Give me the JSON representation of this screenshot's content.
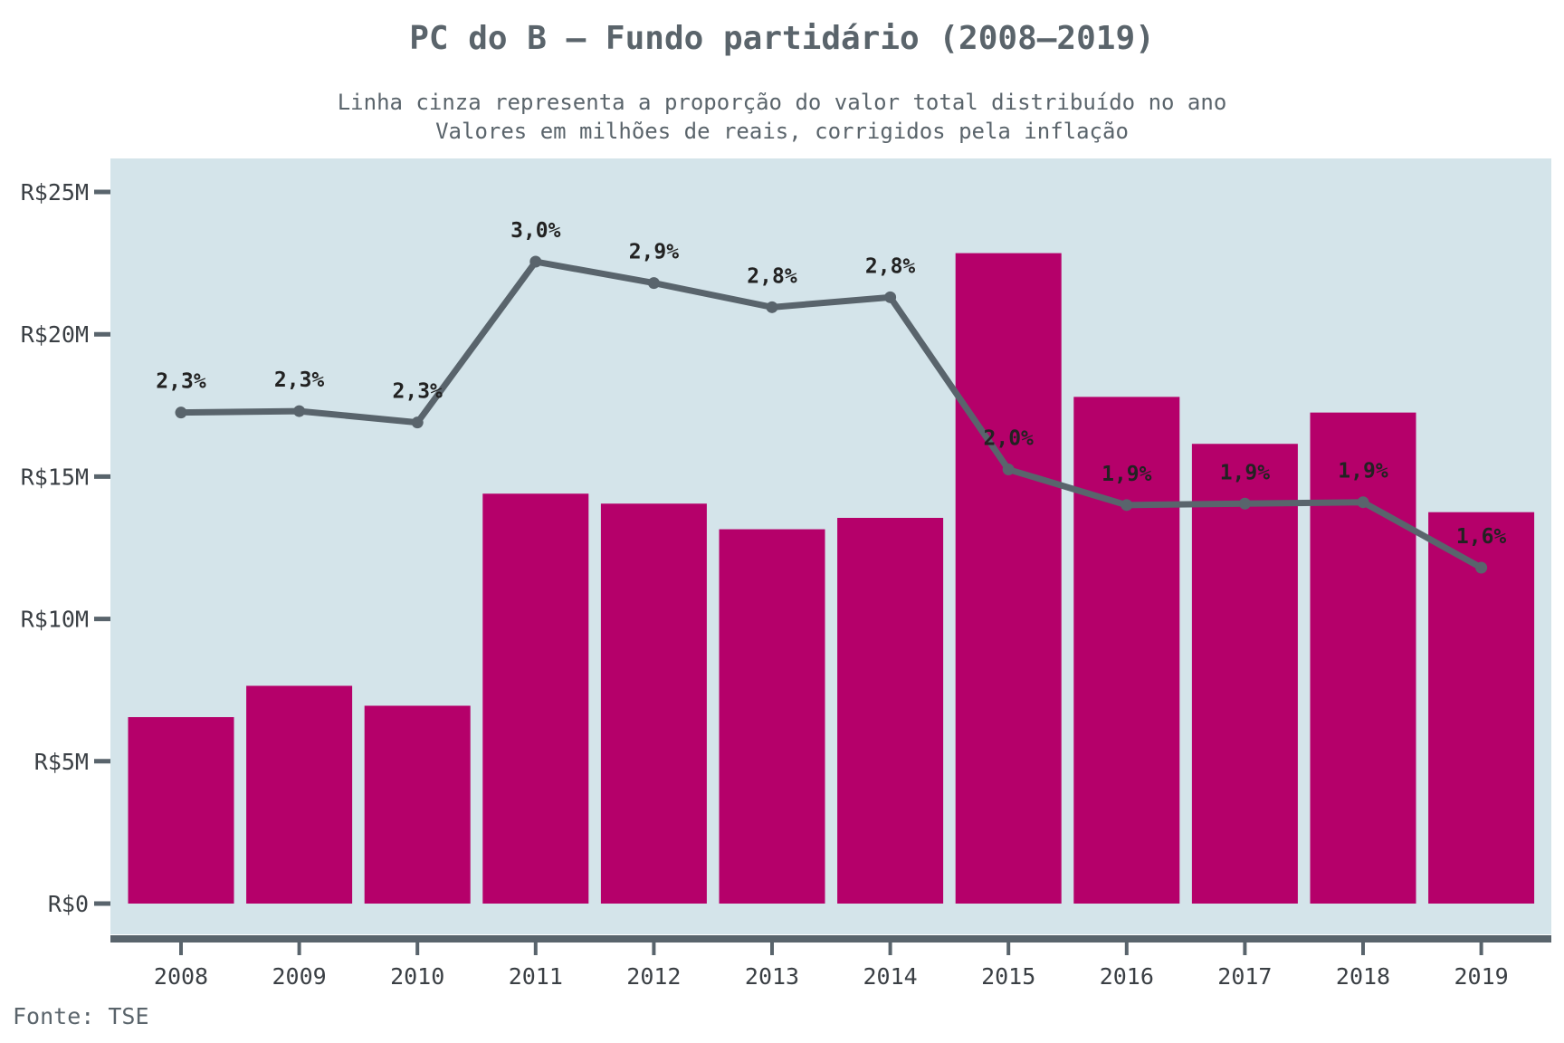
{
  "colors": {
    "panel_background": "#d4e4ea",
    "bar": "#b5006a",
    "line": "#59646c",
    "axis": "#59646c",
    "text": "#5a646b"
  },
  "chart_data": {
    "type": "bar",
    "title": "PC do B – Fundo partidário (2008–2019)",
    "subtitle_lines": [
      "Linha cinza representa a proporção do valor total distribuído no ano",
      "Valores em milhões de reais, corrigidos pela inflação"
    ],
    "caption": "Fonte: TSE",
    "xlabel": "",
    "ylabel": "",
    "categories": [
      "2008",
      "2009",
      "2010",
      "2011",
      "2012",
      "2013",
      "2014",
      "2015",
      "2016",
      "2017",
      "2018",
      "2019"
    ],
    "ylim": [
      0,
      25
    ],
    "y_ticks": [
      0,
      5,
      10,
      15,
      20,
      25
    ],
    "y_tick_labels": [
      "R$0",
      "R$5M",
      "R$10M",
      "R$15M",
      "R$20M",
      "R$25M"
    ],
    "grid": false,
    "series": [
      {
        "type": "bar",
        "values": [
          6.55,
          7.65,
          6.95,
          14.4,
          14.05,
          13.15,
          13.55,
          22.85,
          17.8,
          16.15,
          17.25,
          13.75
        ]
      },
      {
        "type": "line",
        "secondary_axis": true,
        "values": [
          2.3,
          2.3,
          2.3,
          3.0,
          2.9,
          2.8,
          2.8,
          2.0,
          1.9,
          1.9,
          1.9,
          1.6
        ],
        "labels": [
          "2,3%",
          "2,3%",
          "2,3%",
          "3,0%",
          "2,9%",
          "2,8%",
          "2,8%",
          "2,0%",
          "1,9%",
          "1,9%",
          "1,9%",
          "1,6%"
        ],
        "plotted_on_bar_scale": [
          17.25,
          17.3,
          16.9,
          22.55,
          21.8,
          20.95,
          21.3,
          15.25,
          14.0,
          14.05,
          14.1,
          11.8
        ]
      }
    ]
  }
}
